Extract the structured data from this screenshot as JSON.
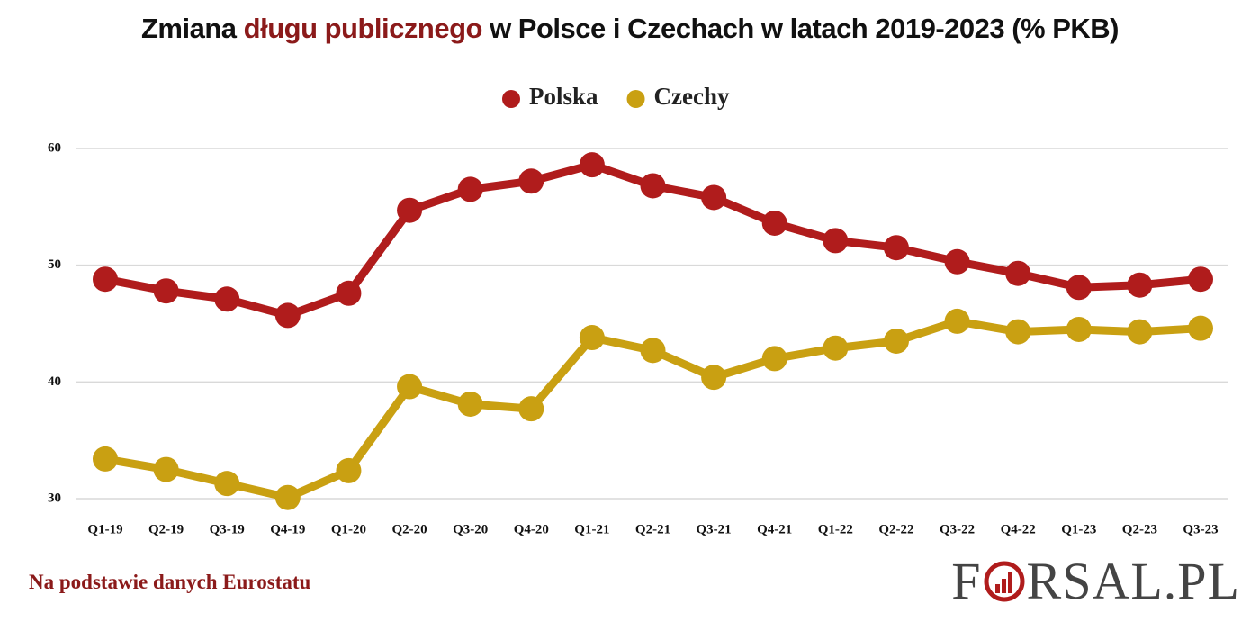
{
  "chart_data": {
    "type": "line",
    "title": [
      "Zmiana",
      "długu publicznego",
      "w Polsce i Czechach w latach 2019-2023 (% PKB)"
    ],
    "categories": [
      "Q1-19",
      "Q2-19",
      "Q3-19",
      "Q4-19",
      "Q1-20",
      "Q2-20",
      "Q3-20",
      "Q4-20",
      "Q1-21",
      "Q2-21",
      "Q3-21",
      "Q4-21",
      "Q1-22",
      "Q2-22",
      "Q3-22",
      "Q4-22",
      "Q1-23",
      "Q2-23",
      "Q3-23"
    ],
    "series": [
      {
        "name": "Polska",
        "color": "#b01c1c",
        "values": [
          48.8,
          47.8,
          47.1,
          45.7,
          47.6,
          54.7,
          56.5,
          57.2,
          58.6,
          56.8,
          55.8,
          53.6,
          52.1,
          51.5,
          50.3,
          49.3,
          48.1,
          48.3,
          48.8
        ]
      },
      {
        "name": "Czechy",
        "color": "#c9a012",
        "values": [
          33.4,
          32.5,
          31.3,
          30.1,
          32.4,
          39.6,
          38.1,
          37.7,
          43.8,
          42.7,
          40.4,
          42.0,
          42.9,
          43.5,
          45.2,
          44.3,
          44.5,
          44.3,
          44.6
        ]
      }
    ],
    "ylim": [
      30,
      60
    ],
    "yticks": [
      30,
      40,
      50,
      60
    ],
    "grid": true,
    "source": "Na podstawie danych Eurostatu",
    "logo": [
      "F",
      "RSAL.PL"
    ]
  }
}
